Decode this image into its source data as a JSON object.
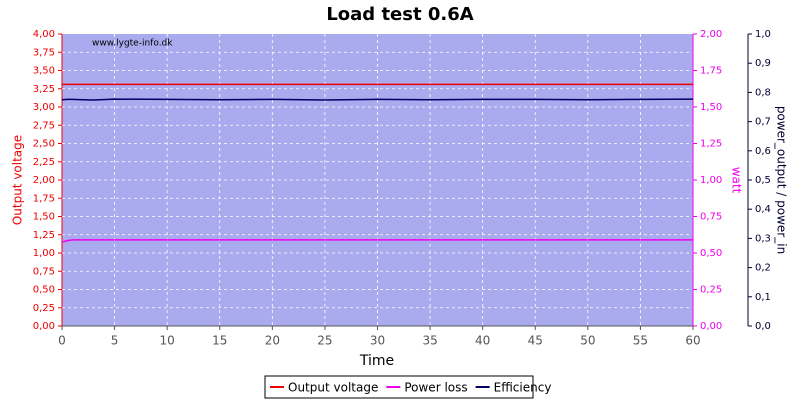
{
  "chart_data": {
    "type": "line",
    "title": "Load test 0.6A",
    "watermark": "www.lygte-info.dk",
    "xlabel": "Time",
    "ylabel": "Output voltage",
    "y2label": "watt",
    "y3label": "power_output / power_in",
    "x": [
      0,
      0.5,
      1,
      2,
      3,
      5,
      10,
      15,
      20,
      25,
      30,
      35,
      40,
      45,
      50,
      55,
      60
    ],
    "xlim": [
      0,
      60
    ],
    "xticks": [
      0,
      5,
      10,
      15,
      20,
      25,
      30,
      35,
      40,
      45,
      50,
      55,
      60
    ],
    "ylim": [
      0,
      4
    ],
    "yticks": [
      {
        "value": 0,
        "label": "0,00"
      },
      {
        "value": 0.25,
        "label": "0,25"
      },
      {
        "value": 0.5,
        "label": "0,50"
      },
      {
        "value": 0.75,
        "label": "0,75"
      },
      {
        "value": 1,
        "label": "1,00"
      },
      {
        "value": 1.25,
        "label": "1,25"
      },
      {
        "value": 1.5,
        "label": "1,50"
      },
      {
        "value": 1.75,
        "label": "1,75"
      },
      {
        "value": 2,
        "label": "2,00"
      },
      {
        "value": 2.25,
        "label": "2,25"
      },
      {
        "value": 2.5,
        "label": "2,50"
      },
      {
        "value": 2.75,
        "label": "2,75"
      },
      {
        "value": 3,
        "label": "3,00"
      },
      {
        "value": 3.25,
        "label": "3,25"
      },
      {
        "value": 3.5,
        "label": "3,50"
      },
      {
        "value": 3.75,
        "label": "3,75"
      },
      {
        "value": 4,
        "label": "4,00"
      }
    ],
    "y2lim": [
      0,
      2
    ],
    "y2ticks": [
      {
        "value": 0,
        "label": "0,00"
      },
      {
        "value": 0.25,
        "label": "0,25"
      },
      {
        "value": 0.5,
        "label": "0,50"
      },
      {
        "value": 0.75,
        "label": "0,75"
      },
      {
        "value": 1,
        "label": "1,00"
      },
      {
        "value": 1.25,
        "label": "1,25"
      },
      {
        "value": 1.5,
        "label": "1,50"
      },
      {
        "value": 1.75,
        "label": "1,75"
      },
      {
        "value": 2,
        "label": "2,00"
      }
    ],
    "y3lim": [
      0,
      1
    ],
    "y3ticks": [
      {
        "value": 0,
        "label": "0,0"
      },
      {
        "value": 0.1,
        "label": "0,1"
      },
      {
        "value": 0.2,
        "label": "0,2"
      },
      {
        "value": 0.3,
        "label": "0,3"
      },
      {
        "value": 0.4,
        "label": "0,4"
      },
      {
        "value": 0.5,
        "label": "0,5"
      },
      {
        "value": 0.6,
        "label": "0,6"
      },
      {
        "value": 0.7,
        "label": "0,7"
      },
      {
        "value": 0.8,
        "label": "0,8"
      },
      {
        "value": 0.9,
        "label": "0,9"
      },
      {
        "value": 1,
        "label": "1,0"
      }
    ],
    "grid": true,
    "series": [
      {
        "name": "Output voltage",
        "color": "#ee0000",
        "axis": "y",
        "values": [
          3.31,
          3.31,
          3.31,
          3.31,
          3.31,
          3.31,
          3.31,
          3.31,
          3.31,
          3.31,
          3.31,
          3.31,
          3.31,
          3.31,
          3.31,
          3.31,
          3.31
        ]
      },
      {
        "name": "Power loss",
        "color": "#ee00ee",
        "axis": "y2",
        "values": [
          0.575,
          0.585,
          0.59,
          0.59,
          0.59,
          0.59,
          0.59,
          0.59,
          0.59,
          0.59,
          0.59,
          0.59,
          0.59,
          0.59,
          0.59,
          0.59,
          0.59
        ]
      },
      {
        "name": "Efficiency",
        "color": "#000066",
        "axis": "y3",
        "values": [
          0.775,
          0.776,
          0.776,
          0.775,
          0.774,
          0.777,
          0.776,
          0.775,
          0.776,
          0.774,
          0.776,
          0.775,
          0.776,
          0.776,
          0.775,
          0.776,
          0.777
        ]
      }
    ]
  }
}
